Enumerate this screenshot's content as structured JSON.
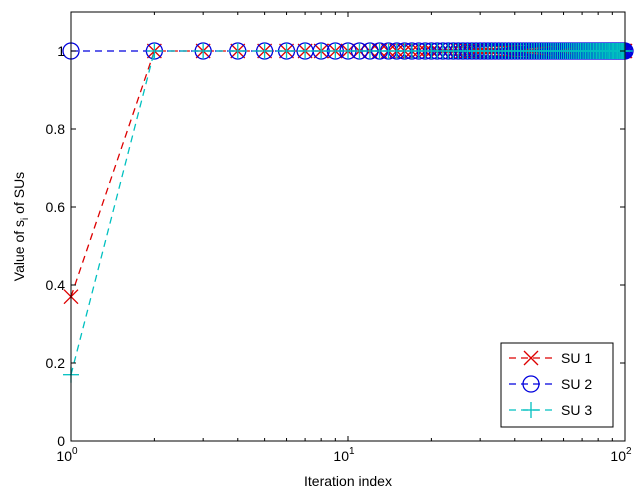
{
  "chart_data": {
    "type": "line",
    "xlabel": "Iteration index",
    "ylabel": "Value of s",
    "ylabel_sub": "i",
    "ylabel_suffix": " of SUs",
    "xscale": "log",
    "xlim": [
      1,
      100
    ],
    "ylim": [
      0,
      1.1
    ],
    "grid": false,
    "legend_position": "bottom-right",
    "x_ticks": [
      {
        "base": "10",
        "exp": "0"
      },
      {
        "base": "10",
        "exp": "1"
      },
      {
        "base": "10",
        "exp": "2"
      }
    ],
    "y_ticks": [
      "0",
      "0.2",
      "0.4",
      "0.6",
      "0.8",
      "1"
    ],
    "series": [
      {
        "name": "SU 1",
        "color": "#dd0000",
        "marker": "x",
        "start": [
          0.37
        ],
        "steady_value": 1,
        "iterations": 100
      },
      {
        "name": "SU 2",
        "color": "#0000dd",
        "marker": "circle",
        "start": [
          1
        ],
        "steady_value": 1,
        "iterations": 100
      },
      {
        "name": "SU 3",
        "color": "#00c0c0",
        "marker": "plus",
        "start": [
          0.17
        ],
        "steady_value": 1,
        "iterations": 100
      }
    ]
  }
}
